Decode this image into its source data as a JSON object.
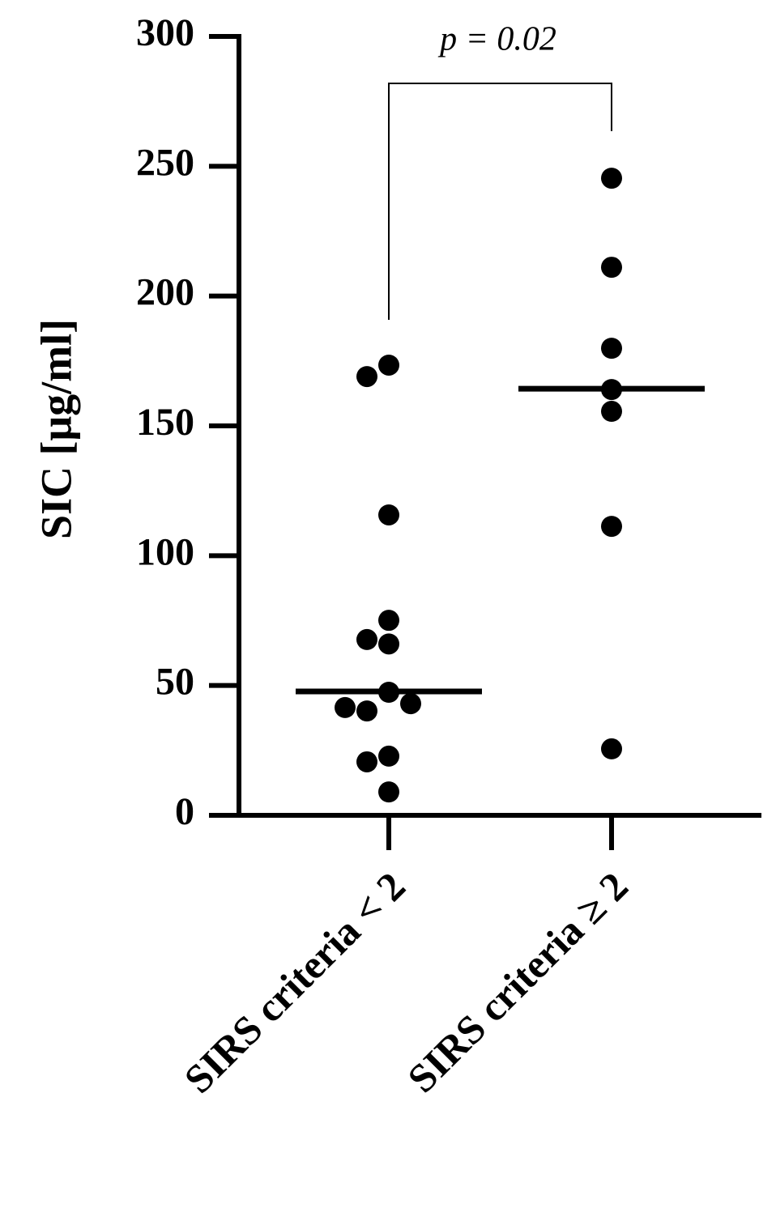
{
  "chart_data": {
    "type": "dot",
    "y_label": "SIC [μg/ml]",
    "annotation": "p = 0.02",
    "categories": [
      "SIRS criteria < 2",
      "SIRS criteria ≥ 2"
    ],
    "groups": [
      [
        173.4,
        169,
        115.7,
        66,
        67.7,
        75.1,
        47.4,
        40.2,
        43,
        41.5,
        22.8,
        20.6,
        9
      ],
      [
        245.4,
        211.1,
        179.9,
        164,
        155.6,
        111.3,
        25.6
      ]
    ],
    "medians": [
      47.7,
      164.3
    ],
    "color": "#000000",
    "ylim": [
      0,
      300
    ],
    "yticks": [
      0,
      50,
      100,
      150,
      200,
      250,
      300
    ]
  }
}
